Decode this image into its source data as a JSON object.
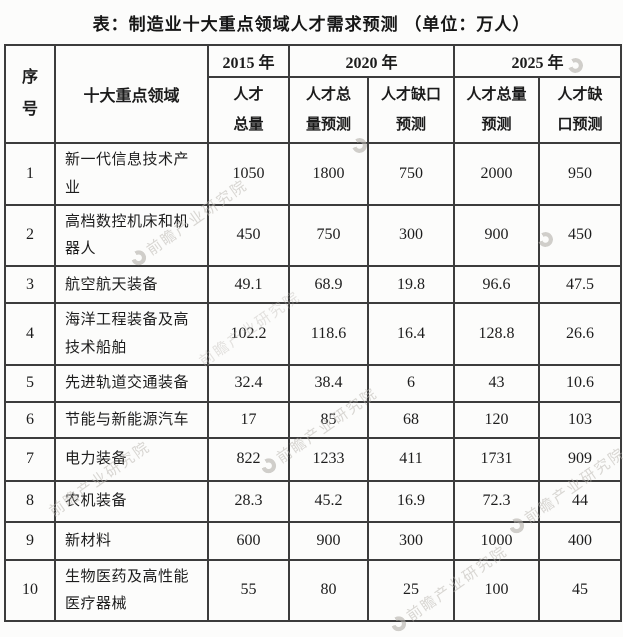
{
  "title": "表：制造业十大重点领域人才需求预测 （单位：万人）",
  "watermark": {
    "text": "前瞻产业研究院",
    "logo": "circular-arrow-logo"
  },
  "table": {
    "header": {
      "col_no": "序号",
      "col_field": "十大重点领域",
      "year_2015": "2015 年",
      "year_2020": "2020 年",
      "year_2025": "2025 年",
      "sub_total_2015": "人才总量",
      "sub_total_forecast_2020": "人才总量预测",
      "sub_gap_forecast_2020": "人才缺口预测",
      "sub_total_forecast_2025": "人才总量预测",
      "sub_gap_forecast_2025": "人才缺口预测"
    },
    "rows": [
      {
        "no": "1",
        "field": "新一代信息技术产业",
        "values": [
          "1050",
          "1800",
          "750",
          "2000",
          "950"
        ]
      },
      {
        "no": "2",
        "field": "高档数控机床和机器人",
        "values": [
          "450",
          "750",
          "300",
          "900",
          "450"
        ]
      },
      {
        "no": "3",
        "field": "航空航天装备",
        "values": [
          "49.1",
          "68.9",
          "19.8",
          "96.6",
          "47.5"
        ]
      },
      {
        "no": "4",
        "field": "海洋工程装备及高技术船舶",
        "values": [
          "102.2",
          "118.6",
          "16.4",
          "128.8",
          "26.6"
        ]
      },
      {
        "no": "5",
        "field": "先进轨道交通装备",
        "values": [
          "32.4",
          "38.4",
          "6",
          "43",
          "10.6"
        ]
      },
      {
        "no": "6",
        "field": "节能与新能源汽车",
        "values": [
          "17",
          "85",
          "68",
          "120",
          "103"
        ]
      },
      {
        "no": "7",
        "field": "电力装备",
        "values": [
          "822",
          "1233",
          "411",
          "1731",
          "909"
        ]
      },
      {
        "no": "8",
        "field": "农机装备",
        "values": [
          "28.3",
          "45.2",
          "16.9",
          "72.3",
          "44"
        ]
      },
      {
        "no": "9",
        "field": "新材料",
        "values": [
          "600",
          "900",
          "300",
          "1000",
          "400"
        ]
      },
      {
        "no": "10",
        "field": "生物医药及高性能医疗器械",
        "values": [
          "55",
          "80",
          "25",
          "100",
          "45"
        ]
      }
    ]
  },
  "chart_data": {
    "type": "table",
    "title": "表：制造业十大重点领域人才需求预测（单位：万人）",
    "unit": "万人",
    "columns": [
      "序号",
      "十大重点领域",
      "2015年 人才总量",
      "2020年 人才总量预测",
      "2020年 人才缺口预测",
      "2025年 人才总量预测",
      "2025年 人才缺口预测"
    ],
    "rows": [
      [
        1,
        "新一代信息技术产业",
        1050,
        1800,
        750,
        2000,
        950
      ],
      [
        2,
        "高档数控机床和机器人",
        450,
        750,
        300,
        900,
        450
      ],
      [
        3,
        "航空航天装备",
        49.1,
        68.9,
        19.8,
        96.6,
        47.5
      ],
      [
        4,
        "海洋工程装备及高技术船舶",
        102.2,
        118.6,
        16.4,
        128.8,
        26.6
      ],
      [
        5,
        "先进轨道交通装备",
        32.4,
        38.4,
        6,
        43,
        10.6
      ],
      [
        6,
        "节能与新能源汽车",
        17,
        85,
        68,
        120,
        103
      ],
      [
        7,
        "电力装备",
        822,
        1233,
        411,
        1731,
        909
      ],
      [
        8,
        "农机装备",
        28.3,
        45.2,
        16.9,
        72.3,
        44
      ],
      [
        9,
        "新材料",
        600,
        900,
        300,
        1000,
        400
      ],
      [
        10,
        "生物医药及高性能医疗器械",
        55,
        80,
        25,
        100,
        45
      ]
    ]
  }
}
